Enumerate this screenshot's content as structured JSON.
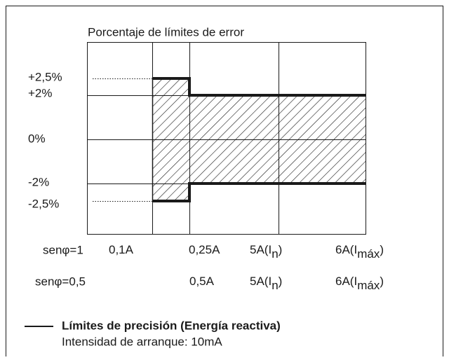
{
  "title": "Porcentaje de límites de error",
  "y_labels": [
    "+2,5%",
    "+2%",
    "0%",
    "-2%",
    "-2,5%"
  ],
  "row1": {
    "label": "senφ=1",
    "items": [
      {
        "main": "0,1A"
      },
      {
        "main": "0,25A"
      },
      {
        "main": "5A(I",
        "sub": "n",
        "close": ")"
      },
      {
        "main": "6A(I",
        "sub": "máx",
        "close": ")"
      }
    ]
  },
  "row2": {
    "label": "senφ=0,5",
    "items": [
      {
        "main": "0,5A"
      },
      {
        "main": "5A(I",
        "sub": "n",
        "close": ")"
      },
      {
        "main": "6A(I",
        "sub": "máx",
        "close": ")"
      }
    ]
  },
  "legend": {
    "label": "Límites de precisión (Energía reactiva)",
    "note": "Intensidad de arranque: 10mA"
  }
}
